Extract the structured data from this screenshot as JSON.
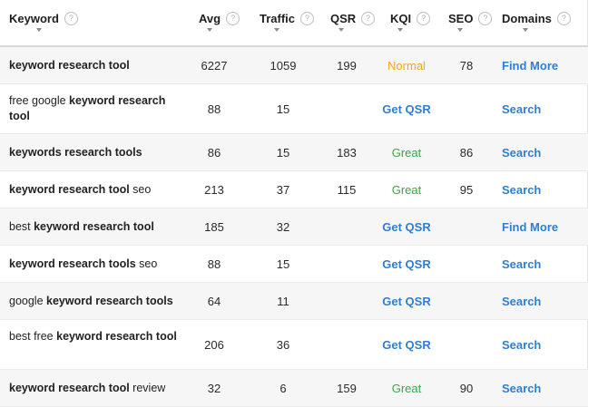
{
  "header": {
    "keyword": "Keyword",
    "avg": "Avg",
    "traffic": "Traffic",
    "qsr": "QSR",
    "kqi": "KQI",
    "seo": "SEO",
    "domains": "Domains",
    "help_glyph": "?"
  },
  "colors": {
    "link": "#2f7fd0",
    "great": "#3ea44a",
    "normal": "#f0a820",
    "row_shade": "#f6f6f6"
  },
  "rows": [
    {
      "kw": [
        {
          "t": "keyword research tool",
          "b": true
        }
      ],
      "avg": "6227",
      "traffic": "1059",
      "qsr": "199",
      "kqi": "Normal",
      "kqi_kind": "normal",
      "seo": "78",
      "domains": "Find More"
    },
    {
      "kw": [
        {
          "t": "free google ",
          "b": false
        },
        {
          "t": "keyword research tool",
          "b": true
        }
      ],
      "avg": "88",
      "traffic": "15",
      "qsr": "",
      "kqi": "Get QSR",
      "kqi_kind": "link",
      "seo": "",
      "domains": "Search"
    },
    {
      "kw": [
        {
          "t": "keywords research tools",
          "b": true
        }
      ],
      "avg": "86",
      "traffic": "15",
      "qsr": "183",
      "kqi": "Great",
      "kqi_kind": "great",
      "seo": "86",
      "domains": "Search"
    },
    {
      "kw": [
        {
          "t": "keyword research tool",
          "b": true
        },
        {
          "t": " seo",
          "b": false
        }
      ],
      "avg": "213",
      "traffic": "37",
      "qsr": "115",
      "kqi": "Great",
      "kqi_kind": "great",
      "seo": "95",
      "domains": "Search"
    },
    {
      "kw": [
        {
          "t": "best ",
          "b": false
        },
        {
          "t": "keyword research tool",
          "b": true
        }
      ],
      "avg": "185",
      "traffic": "32",
      "qsr": "",
      "kqi": "Get QSR",
      "kqi_kind": "link",
      "seo": "",
      "domains": "Find More"
    },
    {
      "kw": [
        {
          "t": "keyword research tools",
          "b": true
        },
        {
          "t": " seo",
          "b": false
        }
      ],
      "avg": "88",
      "traffic": "15",
      "qsr": "",
      "kqi": "Get QSR",
      "kqi_kind": "link",
      "seo": "",
      "domains": "Search"
    },
    {
      "kw": [
        {
          "t": "google ",
          "b": false
        },
        {
          "t": "keyword research tools",
          "b": true
        }
      ],
      "avg": "64",
      "traffic": "11",
      "qsr": "",
      "kqi": "Get QSR",
      "kqi_kind": "link",
      "seo": "",
      "domains": "Search"
    },
    {
      "kw": [
        {
          "t": "best free ",
          "b": false
        },
        {
          "t": "keyword research tool",
          "b": true
        }
      ],
      "avg": "206",
      "traffic": "36",
      "qsr": "",
      "kqi": "Get QSR",
      "kqi_kind": "link",
      "seo": "",
      "domains": "Search"
    },
    {
      "kw": [
        {
          "t": "keyword research tool",
          "b": true
        },
        {
          "t": " review",
          "b": false
        }
      ],
      "avg": "32",
      "traffic": "6",
      "qsr": "159",
      "kqi": "Great",
      "kqi_kind": "great",
      "seo": "90",
      "domains": "Search"
    }
  ]
}
